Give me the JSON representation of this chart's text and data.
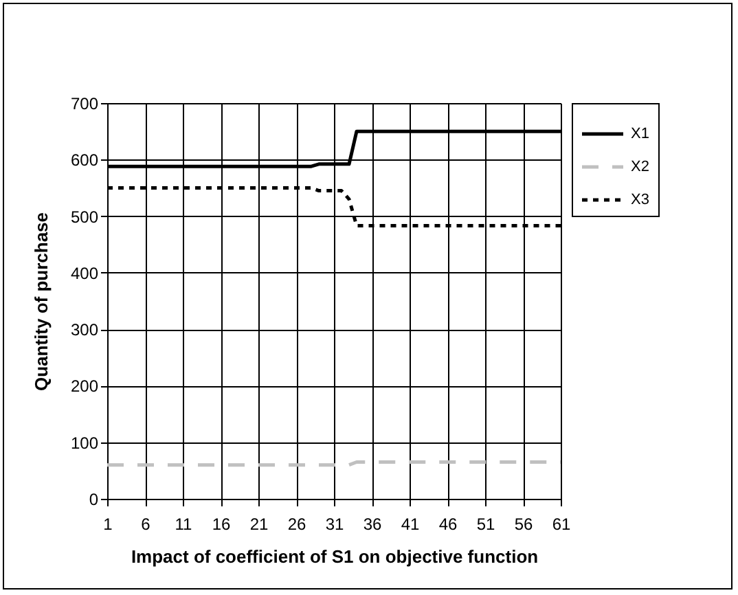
{
  "chart_data": {
    "type": "line",
    "xlabel": "Impact of coefficient of S1 on objective function",
    "ylabel": "Quantity of purchase",
    "xlim": [
      1,
      61
    ],
    "xticks": [
      1,
      6,
      11,
      16,
      21,
      26,
      31,
      36,
      41,
      46,
      51,
      56,
      61
    ],
    "ylim": [
      0,
      700
    ],
    "yticks": [
      0,
      100,
      200,
      300,
      400,
      500,
      600,
      700
    ],
    "grid": true,
    "legend": "top right",
    "marker": "none",
    "series": [
      {
        "name": "X1",
        "color": "#000000",
        "line_style": "solid",
        "x": [
          1,
          28,
          29,
          33,
          34,
          61
        ],
        "values": [
          588,
          588,
          592,
          592,
          650,
          650
        ]
      },
      {
        "name": "X2",
        "color": "#c0c0c0",
        "line_style": "dashed",
        "x": [
          1,
          33,
          34,
          61
        ],
        "values": [
          60,
          60,
          65,
          65
        ]
      },
      {
        "name": "X3",
        "color": "#000000",
        "line_style": "dotted",
        "x": [
          1,
          28,
          29,
          32,
          33,
          34,
          61
        ],
        "values": [
          550,
          550,
          545,
          545,
          530,
          483,
          483
        ]
      }
    ]
  }
}
